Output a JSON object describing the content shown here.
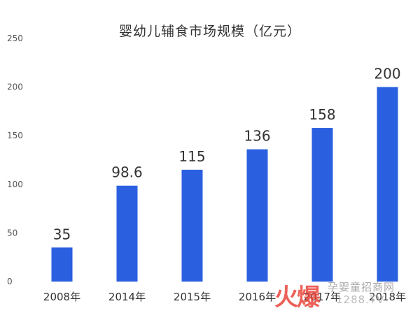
{
  "chart_data": {
    "type": "bar",
    "title": "婴幼儿辅食市场规模（亿元）",
    "xlabel": "",
    "ylabel": "",
    "categories": [
      "2008年",
      "2014年",
      "2015年",
      "2016年",
      "2017年",
      "2018年"
    ],
    "values": [
      35,
      98.6,
      115,
      136,
      158,
      200
    ],
    "data_labels": [
      "35",
      "98.6",
      "115",
      "136",
      "158",
      "200"
    ],
    "ylim": [
      0,
      250
    ],
    "yticks": [
      0,
      50,
      100,
      150,
      200,
      250
    ],
    "grid": false,
    "legend": "none",
    "bar_color": "#2a5fe0"
  },
  "watermark": {
    "logo": "火爆",
    "name": "孕婴童招商网",
    "url": "1288.TV"
  }
}
